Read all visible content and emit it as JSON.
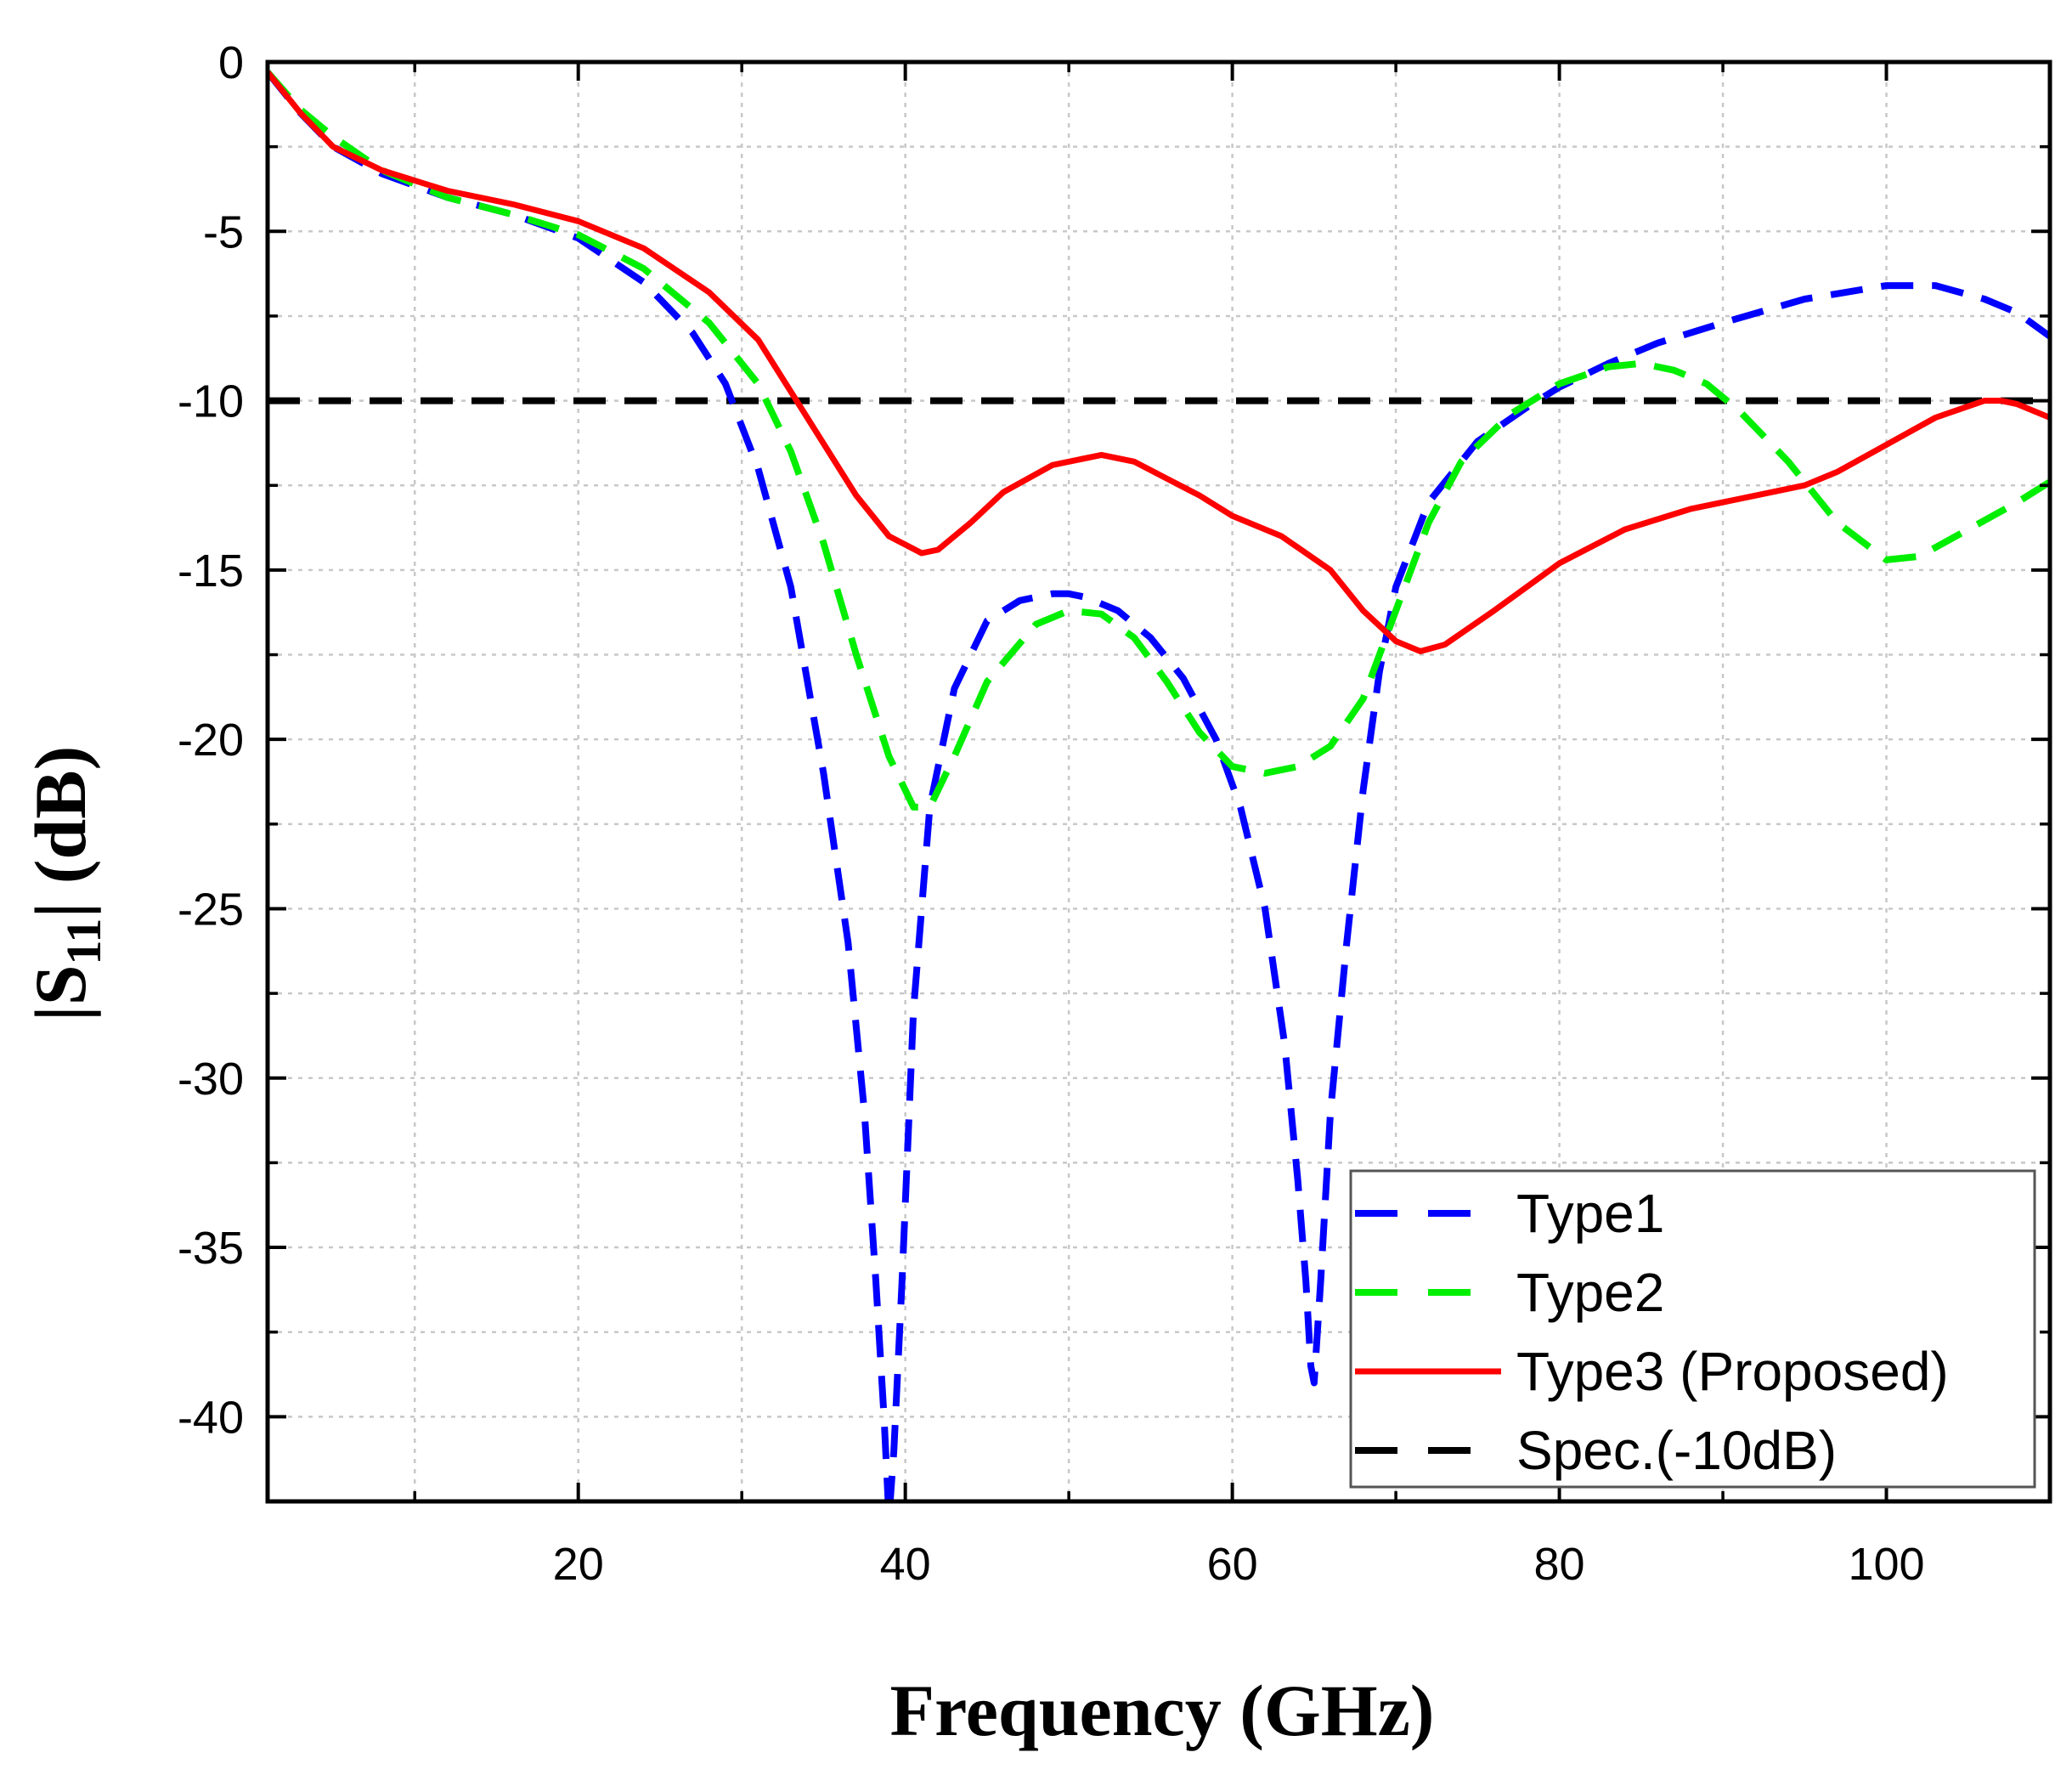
{
  "chart_data": {
    "type": "line",
    "title": "",
    "xlabel": "Frequency (GHz)",
    "ylabel_prefix": "|S",
    "ylabel_subscript": "11",
    "ylabel_suffix": "| (dB)",
    "xlim": [
      1,
      110
    ],
    "ylim": [
      -42.5,
      0
    ],
    "x_ticks": [
      20,
      40,
      60,
      80,
      100
    ],
    "x_tick_labels": [
      "20",
      "40",
      "60",
      "80",
      "100"
    ],
    "x_minor_ticks": [
      10,
      30,
      50,
      70,
      90,
      110
    ],
    "y_ticks": [
      0,
      -5,
      -10,
      -15,
      -20,
      -25,
      -30,
      -35,
      -40
    ],
    "y_tick_labels": [
      "0",
      "-5",
      "-10",
      "-15",
      "-20",
      "-25",
      "-30",
      "-35",
      "-40"
    ],
    "y_minor_ticks": [
      -2.5,
      -7.5,
      -12.5,
      -17.5,
      -22.5,
      -27.5,
      -32.5,
      -37.5
    ],
    "grid": true,
    "legend_position": "bottom-right",
    "series": [
      {
        "name": "Type1",
        "color": "#0000ff",
        "dash": "dashed",
        "x": [
          1,
          3,
          5,
          8,
          12,
          16,
          20,
          24,
          27,
          29,
          31,
          33,
          35,
          36.5,
          37.5,
          38.2,
          38.7,
          39,
          39.3,
          39.8,
          40.5,
          41.5,
          43,
          45,
          47,
          49,
          50,
          51,
          53,
          55,
          57,
          59,
          60.5,
          62,
          63.2,
          64,
          64.5,
          64.8,
          65,
          65.4,
          66,
          67,
          68,
          69,
          70,
          72,
          75,
          78,
          80,
          83,
          86,
          90,
          95,
          100,
          103,
          106,
          108,
          110
        ],
        "values": [
          -0.3,
          -1.5,
          -2.5,
          -3.3,
          -4.0,
          -4.5,
          -5.2,
          -6.5,
          -8.0,
          -9.5,
          -12,
          -15.5,
          -21,
          -26,
          -31,
          -36,
          -40,
          -43,
          -41,
          -36,
          -28,
          -22,
          -18.5,
          -16.5,
          -15.9,
          -15.7,
          -15.7,
          -15.8,
          -16.2,
          -17,
          -18.2,
          -20,
          -22,
          -25,
          -29,
          -33,
          -36,
          -38.5,
          -39,
          -36,
          -31,
          -26,
          -21.5,
          -18,
          -15.5,
          -13,
          -11.2,
          -10.2,
          -9.6,
          -8.9,
          -8.3,
          -7.7,
          -7.0,
          -6.6,
          -6.6,
          -7.0,
          -7.4,
          -8.1
        ]
      },
      {
        "name": "Type2",
        "color": "#00ee00",
        "dash": "dashed",
        "x": [
          1,
          3,
          5,
          8,
          12,
          16,
          20,
          24,
          28,
          31,
          33,
          35,
          37,
          39,
          40.5,
          41.5,
          43,
          45,
          48,
          50,
          52,
          54,
          56,
          58,
          60,
          62,
          64,
          66,
          68,
          70,
          72,
          74,
          77,
          80,
          83,
          85,
          87,
          89,
          91,
          94,
          97,
          100,
          102,
          105,
          108,
          110
        ],
        "values": [
          -0.3,
          -1.4,
          -2.2,
          -3.2,
          -4.0,
          -4.5,
          -5.1,
          -6.1,
          -7.7,
          -9.5,
          -11.5,
          -14.2,
          -17.5,
          -20.5,
          -22.0,
          -22.0,
          -20.5,
          -18.3,
          -16.6,
          -16.2,
          -16.3,
          -17.0,
          -18.3,
          -19.8,
          -20.8,
          -21.0,
          -20.8,
          -20.2,
          -18.8,
          -16.2,
          -13.6,
          -11.8,
          -10.4,
          -9.5,
          -9.0,
          -8.9,
          -9.1,
          -9.5,
          -10.3,
          -11.8,
          -13.6,
          -14.7,
          -14.6,
          -13.8,
          -13.0,
          -12.4
        ]
      },
      {
        "name": "Type3 (Proposed)",
        "color": "#ff0000",
        "dash": "solid",
        "x": [
          1,
          3,
          5,
          8,
          12,
          16,
          20,
          24,
          28,
          31,
          34,
          37,
          39,
          41,
          42,
          44,
          46,
          49,
          52,
          54,
          56,
          58,
          60,
          63,
          66,
          68,
          70,
          71.5,
          73,
          76,
          80,
          84,
          88,
          92,
          95,
          97,
          100,
          103,
          106,
          107,
          108,
          110
        ],
        "values": [
          -0.3,
          -1.5,
          -2.5,
          -3.2,
          -3.8,
          -4.2,
          -4.7,
          -5.5,
          -6.8,
          -8.2,
          -10.5,
          -12.8,
          -14.0,
          -14.5,
          -14.4,
          -13.6,
          -12.7,
          -11.9,
          -11.6,
          -11.8,
          -12.3,
          -12.8,
          -13.4,
          -14.0,
          -15.0,
          -16.2,
          -17.1,
          -17.4,
          -17.2,
          -16.2,
          -14.8,
          -13.8,
          -13.2,
          -12.8,
          -12.5,
          -12.1,
          -11.3,
          -10.5,
          -10.0,
          -10.0,
          -10.1,
          -10.5
        ]
      },
      {
        "name": "Spec.(-10dB)",
        "color": "#000000",
        "dash": "dashed",
        "x": [
          1,
          110
        ],
        "values": [
          -10,
          -10
        ]
      }
    ]
  }
}
